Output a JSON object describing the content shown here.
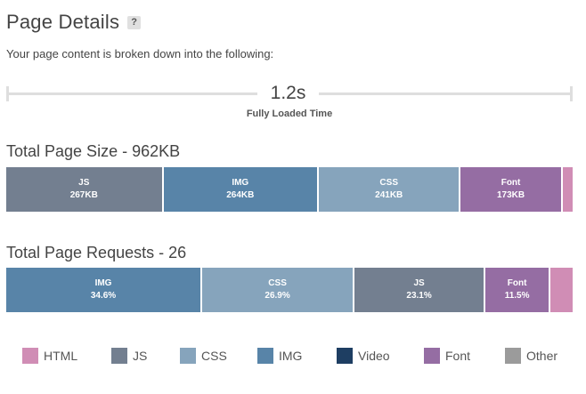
{
  "header": {
    "title": "Page Details",
    "help": "?"
  },
  "intro": "Your page content is broken down into the following:",
  "timeline": {
    "value": "1.2s",
    "label": "Fully Loaded Time"
  },
  "colors": {
    "HTML": "#d08db5",
    "JS": "#737f90",
    "CSS": "#86a4bc",
    "IMG": "#5884a8",
    "Video": "#1e3e62",
    "Font": "#956da3",
    "Other": "#9b9b9b"
  },
  "page_size": {
    "title": "Total Page Size - 962KB",
    "segments": [
      {
        "type": "JS",
        "label": "JS",
        "value_text": "267KB",
        "kb": 267
      },
      {
        "type": "IMG",
        "label": "IMG",
        "value_text": "264KB",
        "kb": 264
      },
      {
        "type": "CSS",
        "label": "CSS",
        "value_text": "241KB",
        "kb": 241
      },
      {
        "type": "Font",
        "label": "Font",
        "value_text": "173KB",
        "kb": 173
      },
      {
        "type": "HTML",
        "label": "",
        "value_text": "",
        "kb": 17
      }
    ]
  },
  "page_requests": {
    "title": "Total Page Requests - 26",
    "segments": [
      {
        "type": "IMG",
        "label": "IMG",
        "value_text": "34.6%",
        "pct": 34.6
      },
      {
        "type": "CSS",
        "label": "CSS",
        "value_text": "26.9%",
        "pct": 26.9
      },
      {
        "type": "JS",
        "label": "JS",
        "value_text": "23.1%",
        "pct": 23.1
      },
      {
        "type": "Font",
        "label": "Font",
        "value_text": "11.5%",
        "pct": 11.5
      },
      {
        "type": "HTML",
        "label": "",
        "value_text": "",
        "pct": 3.9
      }
    ]
  },
  "legend": [
    {
      "type": "HTML",
      "label": "HTML"
    },
    {
      "type": "JS",
      "label": "JS"
    },
    {
      "type": "CSS",
      "label": "CSS"
    },
    {
      "type": "IMG",
      "label": "IMG"
    },
    {
      "type": "Video",
      "label": "Video"
    },
    {
      "type": "Font",
      "label": "Font"
    },
    {
      "type": "Other",
      "label": "Other"
    }
  ]
}
